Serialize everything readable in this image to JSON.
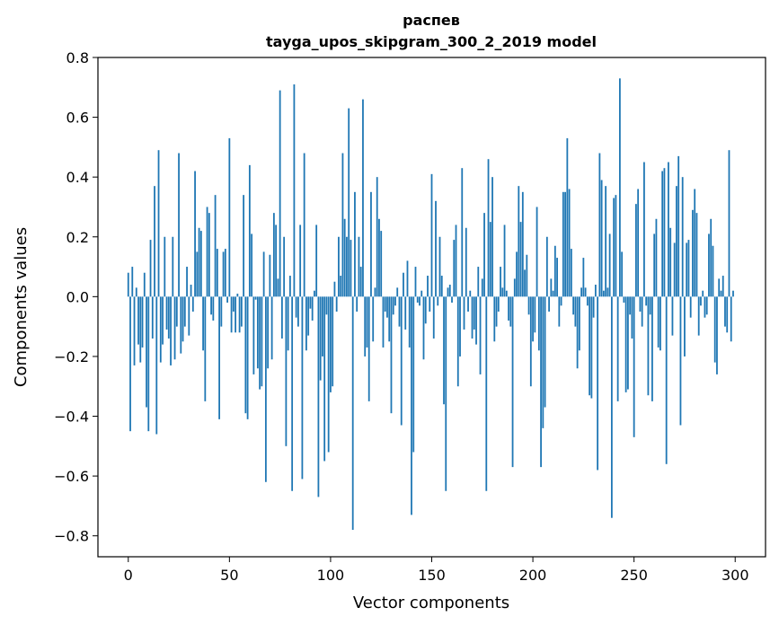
{
  "chart_data": {
    "type": "bar",
    "title_line1": "распев",
    "title_line2": "tayga_upos_skipgram_300_2_2019 model",
    "xlabel": "Vector components",
    "ylabel": "Components values",
    "xlim": [
      -15,
      315
    ],
    "ylim": [
      -0.87,
      0.8
    ],
    "xticks": [
      0,
      50,
      100,
      150,
      200,
      250,
      300
    ],
    "xtick_labels": [
      "0",
      "50",
      "100",
      "150",
      "200",
      "250",
      "300"
    ],
    "yticks": [
      0.8,
      0.6,
      0.4,
      0.2,
      0.0,
      -0.2,
      -0.4,
      -0.6,
      -0.8
    ],
    "ytick_labels": [
      "0.8",
      "0.6",
      "0.4",
      "0.2",
      "0.0",
      "−0.2",
      "−0.4",
      "−0.6",
      "−0.8"
    ],
    "bar_color": "#1f77b4",
    "values": [
      0.08,
      -0.45,
      0.1,
      -0.23,
      0.03,
      -0.16,
      -0.22,
      -0.17,
      0.08,
      -0.37,
      -0.45,
      0.19,
      -0.14,
      0.37,
      -0.46,
      0.49,
      -0.22,
      -0.16,
      0.2,
      -0.11,
      -0.14,
      -0.23,
      0.2,
      -0.21,
      -0.1,
      0.48,
      -0.19,
      -0.15,
      -0.1,
      0.1,
      -0.13,
      0.04,
      -0.05,
      0.42,
      0.15,
      0.23,
      0.22,
      -0.18,
      -0.35,
      0.3,
      0.28,
      -0.06,
      -0.08,
      0.34,
      0.16,
      -0.41,
      -0.1,
      0.15,
      0.16,
      -0.02,
      0.53,
      -0.12,
      -0.05,
      -0.12,
      0.01,
      -0.12,
      -0.1,
      0.34,
      -0.39,
      -0.41,
      0.44,
      0.21,
      -0.26,
      -0.01,
      -0.24,
      -0.31,
      -0.3,
      0.15,
      -0.62,
      -0.24,
      0.14,
      -0.21,
      0.28,
      0.24,
      0.06,
      0.69,
      -0.14,
      0.2,
      -0.5,
      -0.18,
      0.07,
      -0.65,
      0.71,
      -0.07,
      -0.1,
      0.24,
      -0.61,
      0.48,
      -0.18,
      -0.13,
      -0.04,
      -0.08,
      0.02,
      0.24,
      -0.67,
      -0.28,
      -0.2,
      -0.55,
      -0.06,
      -0.52,
      -0.32,
      -0.3,
      0.05,
      -0.05,
      0.2,
      0.07,
      0.48,
      0.26,
      0.2,
      0.63,
      0.19,
      -0.78,
      0.35,
      -0.05,
      0.2,
      0.1,
      0.66,
      -0.2,
      -0.17,
      -0.35,
      0.35,
      -0.15,
      0.03,
      0.4,
      0.26,
      0.22,
      -0.17,
      -0.05,
      -0.07,
      -0.15,
      -0.39,
      -0.06,
      -0.03,
      0.03,
      -0.1,
      -0.43,
      0.08,
      -0.11,
      0.12,
      -0.17,
      -0.73,
      -0.52,
      0.1,
      -0.02,
      -0.03,
      0.02,
      -0.21,
      -0.09,
      0.07,
      -0.05,
      0.41,
      -0.14,
      0.32,
      -0.03,
      0.2,
      0.07,
      -0.36,
      -0.65,
      0.03,
      0.04,
      -0.02,
      0.19,
      0.24,
      -0.3,
      -0.2,
      0.43,
      -0.11,
      0.23,
      -0.05,
      0.02,
      -0.14,
      -0.11,
      -0.16,
      0.1,
      -0.26,
      0.06,
      0.28,
      -0.65,
      0.46,
      0.25,
      0.4,
      -0.15,
      -0.1,
      -0.05,
      0.1,
      0.03,
      0.24,
      0.02,
      -0.08,
      -0.1,
      -0.57,
      0.06,
      0.15,
      0.37,
      0.25,
      0.35,
      0.09,
      0.14,
      -0.06,
      -0.3,
      -0.15,
      -0.12,
      0.3,
      -0.18,
      -0.57,
      -0.44,
      -0.37,
      0.2,
      -0.05,
      0.06,
      0.02,
      0.17,
      0.13,
      -0.1,
      -0.03,
      0.35,
      0.35,
      0.53,
      0.36,
      0.16,
      -0.06,
      -0.1,
      -0.24,
      -0.18,
      0.03,
      0.13,
      0.03,
      -0.03,
      -0.33,
      -0.34,
      -0.07,
      0.04,
      -0.58,
      0.48,
      0.39,
      0.02,
      0.37,
      0.03,
      0.21,
      -0.74,
      0.33,
      0.34,
      -0.35,
      0.73,
      0.15,
      -0.02,
      -0.32,
      -0.31,
      -0.06,
      -0.14,
      -0.47,
      0.31,
      0.36,
      -0.05,
      -0.1,
      0.45,
      -0.03,
      -0.33,
      -0.06,
      -0.35,
      0.21,
      0.26,
      -0.17,
      -0.18,
      0.42,
      0.43,
      -0.56,
      0.45,
      0.23,
      -0.13,
      0.18,
      0.37,
      0.47,
      -0.43,
      0.4,
      -0.2,
      0.18,
      0.19,
      -0.07,
      0.29,
      0.36,
      0.28,
      -0.13,
      -0.03,
      0.02,
      -0.07,
      -0.06,
      0.21,
      0.26,
      0.17,
      -0.22,
      -0.26,
      0.06,
      0.02,
      0.07,
      -0.1,
      -0.12,
      0.49,
      -0.15,
      0.02
    ]
  }
}
